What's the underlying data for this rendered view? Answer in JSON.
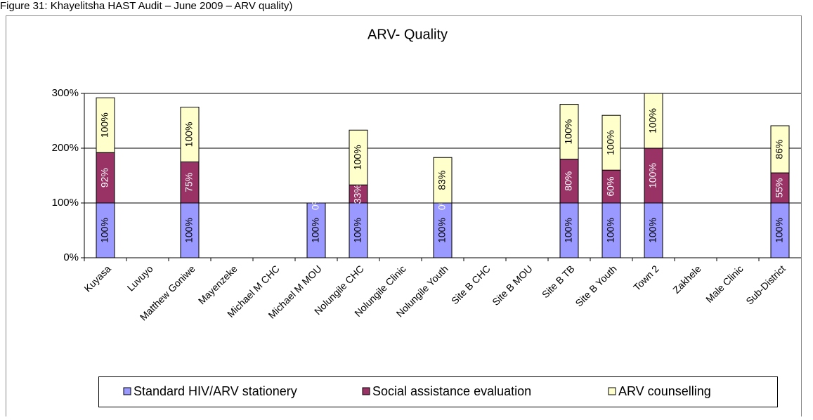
{
  "chart_data": {
    "type": "bar",
    "stacked": true,
    "caption": "Figure 31: Khayelitsha HAST Audit – June 2009 – ARV quality)",
    "title": "ARV- Quality",
    "categories": [
      "Kuyasa",
      "Luvuyo",
      "Matthew Goniwe",
      "Mayenzeke",
      "Michael M CHC",
      "Michael M MOU",
      "Nolungile CHC",
      "Nolungile Clinic",
      "Nolungile Youth",
      "Site B CHC",
      "Site B MOU",
      "Site B TB",
      "Site B Youth",
      "Town 2",
      "Zakhele",
      "Male Clinic",
      "Sub-District"
    ],
    "series": [
      {
        "name": "Standard HIV/ARV stationery",
        "color": "#9999ff",
        "values": [
          100,
          null,
          100,
          null,
          null,
          100,
          100,
          null,
          100,
          null,
          null,
          100,
          100,
          100,
          null,
          null,
          100
        ],
        "value_labels": [
          "100%",
          null,
          "100%",
          null,
          null,
          "100%",
          "100%",
          null,
          "100%",
          null,
          null,
          "100%",
          "100%",
          "100%",
          null,
          null,
          "100%"
        ]
      },
      {
        "name": "Social assistance evaluation",
        "color": "#993366",
        "values": [
          92,
          null,
          75,
          null,
          null,
          0,
          33,
          null,
          0,
          null,
          null,
          80,
          60,
          100,
          null,
          null,
          55
        ],
        "value_labels": [
          "92%",
          null,
          "75%",
          null,
          null,
          "0%",
          "33%",
          null,
          "0%",
          null,
          null,
          "80%",
          "60%",
          "100%",
          null,
          null,
          "55%"
        ]
      },
      {
        "name": "ARV counselling",
        "color": "#ffffcc",
        "values": [
          100,
          null,
          100,
          null,
          null,
          null,
          100,
          null,
          83,
          null,
          null,
          100,
          100,
          100,
          null,
          null,
          86
        ],
        "value_labels": [
          "100%",
          null,
          "100%",
          null,
          null,
          null,
          "100%",
          null,
          "83%",
          null,
          null,
          "100%",
          "100%",
          "100%",
          null,
          null,
          "86%"
        ]
      }
    ],
    "ylim": [
      0,
      300
    ],
    "yticks": [
      {
        "value": 0,
        "label": "0%"
      },
      {
        "value": 100,
        "label": "100%"
      },
      {
        "value": 200,
        "label": "200%"
      },
      {
        "value": 300,
        "label": "300%"
      }
    ],
    "grid": true,
    "legend": "bottom"
  }
}
